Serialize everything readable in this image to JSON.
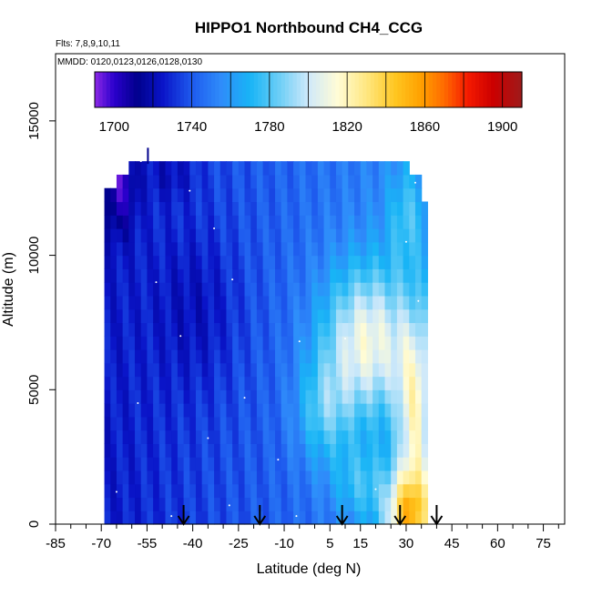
{
  "chart_data": {
    "type": "heatmap",
    "title": "HIPPO1 Northbound CH4_CCG",
    "subtitle_flights": "Flts: 7,8,9,10,11",
    "subtitle_dates": "MMDD: 0120,0123,0126,0128,0130",
    "xlabel": "Latitude (deg N)",
    "ylabel": "Altitude (m)",
    "xlim": [
      -85,
      82
    ],
    "ylim": [
      0,
      17500
    ],
    "x_ticks": [
      -85,
      -70,
      -55,
      -40,
      -25,
      -10,
      5,
      15,
      30,
      45,
      60,
      75
    ],
    "x_tick_labels": [
      "-85",
      "-70",
      "-55",
      "-40",
      "-25",
      "-10",
      "5",
      "15",
      "30",
      "45",
      "60",
      "75"
    ],
    "x_minor_ticks": [
      -80,
      -75,
      -65,
      -60,
      -50,
      -45,
      -35,
      -30,
      -20,
      -15,
      -5,
      0,
      10,
      20,
      25,
      35,
      40,
      50,
      55,
      65,
      70,
      80
    ],
    "y_ticks": [
      0,
      5000,
      10000,
      15000
    ],
    "y_tick_labels": [
      "0",
      "5000",
      "10000",
      "15000"
    ],
    "colorbar": {
      "range": [
        1690,
        1910
      ],
      "tick_values": [
        1700,
        1740,
        1780,
        1820,
        1860,
        1900
      ],
      "tick_labels": [
        "1700",
        "1740",
        "1780",
        "1820",
        "1860",
        "1900"
      ],
      "break_values": [
        1720,
        1740,
        1760,
        1780,
        1800,
        1820,
        1840,
        1860,
        1880,
        1900
      ],
      "color_stops": [
        {
          "value": 1690,
          "color": "#8c28e6"
        },
        {
          "value": 1700,
          "color": "#2a00cc"
        },
        {
          "value": 1712,
          "color": "#00008c"
        },
        {
          "value": 1725,
          "color": "#0a14c8"
        },
        {
          "value": 1740,
          "color": "#1e5aee"
        },
        {
          "value": 1755,
          "color": "#2f8cfa"
        },
        {
          "value": 1770,
          "color": "#18b4f6"
        },
        {
          "value": 1785,
          "color": "#6ccef6"
        },
        {
          "value": 1800,
          "color": "#cfe9fa"
        },
        {
          "value": 1815,
          "color": "#fffcd6"
        },
        {
          "value": 1830,
          "color": "#ffe780"
        },
        {
          "value": 1845,
          "color": "#ffc620"
        },
        {
          "value": 1858,
          "color": "#ffa000"
        },
        {
          "value": 1870,
          "color": "#ff6a00"
        },
        {
          "value": 1882,
          "color": "#f51a00"
        },
        {
          "value": 1895,
          "color": "#cc0000"
        },
        {
          "value": 1910,
          "color": "#9e1a1a"
        }
      ]
    },
    "field": {
      "lat_min": -69,
      "lat_max": 37,
      "lat_step": 2,
      "alt_step": 500,
      "description_values": "CH4 mixing ratio (ppb) vs latitude/altitude; low ~1700-1740 in SH, rising to ~1880 near 30N surface"
    },
    "flight_arrows_lat": [
      -43,
      -18,
      9,
      28,
      40
    ],
    "sample_points": [
      {
        "lat": -57,
        "alt": 13500
      },
      {
        "lat": -41,
        "alt": 12400
      },
      {
        "lat": -33,
        "alt": 11000
      },
      {
        "lat": -52,
        "alt": 9000
      },
      {
        "lat": -44,
        "alt": 7000
      },
      {
        "lat": -58,
        "alt": 4500
      },
      {
        "lat": -23,
        "alt": 4700
      },
      {
        "lat": -35,
        "alt": 3200
      },
      {
        "lat": -12,
        "alt": 2400
      },
      {
        "lat": -65,
        "alt": 1200
      },
      {
        "lat": -28,
        "alt": 700
      },
      {
        "lat": 30,
        "alt": 10500
      },
      {
        "lat": 34,
        "alt": 8300
      },
      {
        "lat": -5,
        "alt": 6800
      },
      {
        "lat": 20,
        "alt": 1300
      },
      {
        "lat": -47,
        "alt": 300
      },
      {
        "lat": -6,
        "alt": 300
      },
      {
        "lat": 33,
        "alt": 12700
      },
      {
        "lat": 10,
        "alt": 6900
      },
      {
        "lat": -27,
        "alt": 9100
      }
    ]
  }
}
